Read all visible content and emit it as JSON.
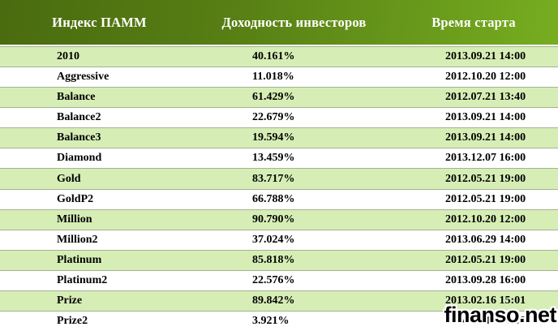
{
  "chart_data": {
    "type": "table",
    "title": "",
    "columns": [
      "Индекс ПАММ",
      "Доходность инвесторов",
      "Время старта"
    ],
    "rows": [
      [
        "2010",
        "40.161%",
        "2013.09.21 14:00"
      ],
      [
        "Aggressive",
        "11.018%",
        "2012.10.20 12:00"
      ],
      [
        "Balance",
        "61.429%",
        "2012.07.21 13:40"
      ],
      [
        "Balance2",
        "22.679%",
        "2013.09.21 14:00"
      ],
      [
        "Balance3",
        "19.594%",
        "2013.09.21 14:00"
      ],
      [
        "Diamond",
        "13.459%",
        "2013.12.07 16:00"
      ],
      [
        "Gold",
        "83.717%",
        "2012.05.21 19:00"
      ],
      [
        "GoldP2",
        "66.788%",
        "2012.05.21 19:00"
      ],
      [
        "Million",
        "90.790%",
        "2012.10.20 12:00"
      ],
      [
        "Million2",
        "37.024%",
        "2013.06.29 14:00"
      ],
      [
        "Platinum",
        "85.818%",
        "2012.05.21 19:00"
      ],
      [
        "Platinum2",
        "22.576%",
        "2013.09.28 16:00"
      ],
      [
        "Prize",
        "89.842%",
        "2013.02.16 15:01"
      ],
      [
        "Prize2",
        "3.921%",
        "2014.03.15 14:00"
      ]
    ]
  },
  "watermark": {
    "text": "finanso.net"
  },
  "colors": {
    "header_gradient_left": "#4a6b0f",
    "header_gradient_mid": "#577f14",
    "header_gradient_right": "#76ad20",
    "header_text": "#ffffff",
    "row_green": "#d6eeb5",
    "row_border": "#a3b295",
    "row_text": "#000000",
    "watermark_color": "#000000"
  }
}
